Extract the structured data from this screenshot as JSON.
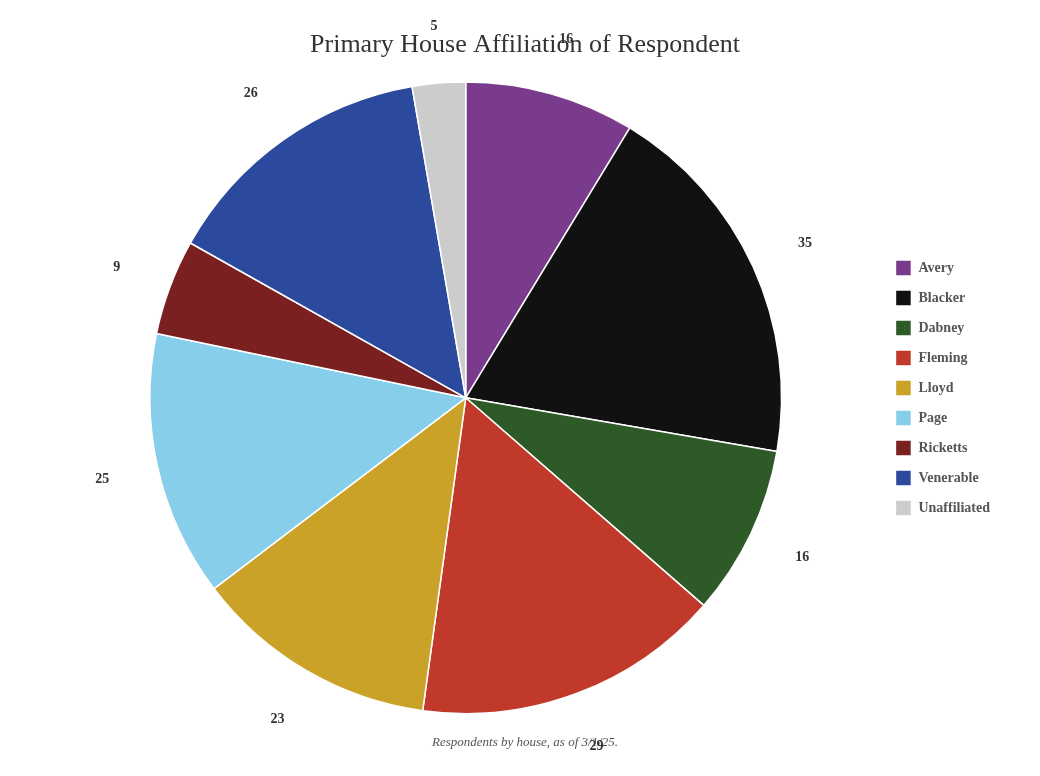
{
  "chart_data": {
    "type": "pie",
    "title": "Primary House Affiliation of Respondent",
    "subtitle": "Respondents by house, as of 3/1/25.",
    "categories": [
      "Avery",
      "Blacker",
      "Dabney",
      "Fleming",
      "Lloyd",
      "Page",
      "Ricketts",
      "Venerable",
      "Unaffiliated"
    ],
    "values": [
      16,
      35,
      16,
      29,
      23,
      25,
      9,
      26,
      5
    ],
    "colors": [
      "#7b3b8c",
      "#111111",
      "#2d5a27",
      "#c0392b",
      "#c9a227",
      "#87ceeb",
      "#7b2020",
      "#2b4a9e",
      "#cccccc"
    ],
    "legend": "right",
    "data_labels": true
  }
}
